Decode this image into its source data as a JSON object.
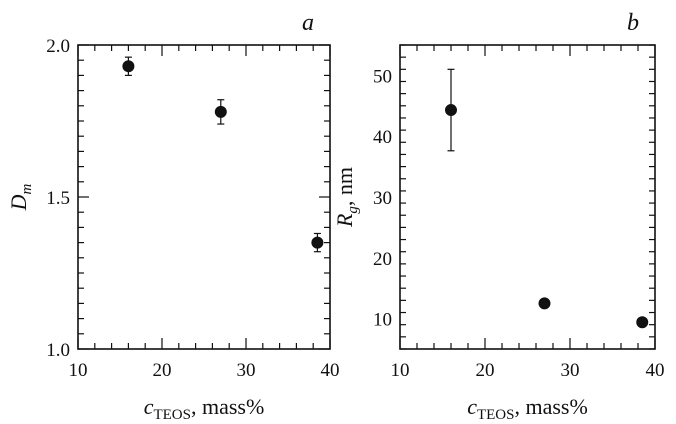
{
  "chart_data": [
    {
      "panel": "a",
      "type": "scatter",
      "xlabel_main": "c",
      "xlabel_sub": "TEOS",
      "xlabel_rest": ", mass%",
      "ylabel_main": "D",
      "ylabel_sub": "m",
      "ylabel_rest": "",
      "xlim": [
        10,
        40
      ],
      "ylim": [
        1.0,
        2.0
      ],
      "xticks_major": [
        10,
        20,
        30,
        40
      ],
      "xtick_labels": [
        "10",
        "20",
        "30",
        "40"
      ],
      "xtick_minor_step": 2,
      "yticks_major": [
        1.0,
        1.5,
        2.0
      ],
      "ytick_labels": [
        "1.0",
        "1.5",
        "2.0"
      ],
      "ytick_minor_step": 0.05,
      "points": [
        {
          "x": 16,
          "y": 1.93,
          "err": 0.03
        },
        {
          "x": 27,
          "y": 1.78,
          "err": 0.04
        },
        {
          "x": 38.5,
          "y": 1.35,
          "err": 0.03
        }
      ]
    },
    {
      "panel": "b",
      "type": "scatter",
      "xlabel_main": "c",
      "xlabel_sub": "TEOS",
      "xlabel_rest": ", mass%",
      "ylabel_main": "R",
      "ylabel_sub": "g",
      "ylabel_rest": ", nm",
      "xlim": [
        10,
        40
      ],
      "ylim": [
        5,
        55
      ],
      "xticks_major": [
        10,
        20,
        30,
        40
      ],
      "xtick_labels": [
        "10",
        "20",
        "30",
        "40"
      ],
      "xtick_minor_step": 2,
      "yticks_major": [
        10,
        20,
        30,
        40,
        50
      ],
      "ytick_labels": [
        "10",
        "20",
        "30",
        "40",
        "50"
      ],
      "ytick_minor_step": 2,
      "points": [
        {
          "x": 16,
          "y": 44.3,
          "err": 6.7
        },
        {
          "x": 27,
          "y": 12.5,
          "err": 0.6
        },
        {
          "x": 38.5,
          "y": 9.4,
          "err": 0.5
        }
      ]
    }
  ]
}
